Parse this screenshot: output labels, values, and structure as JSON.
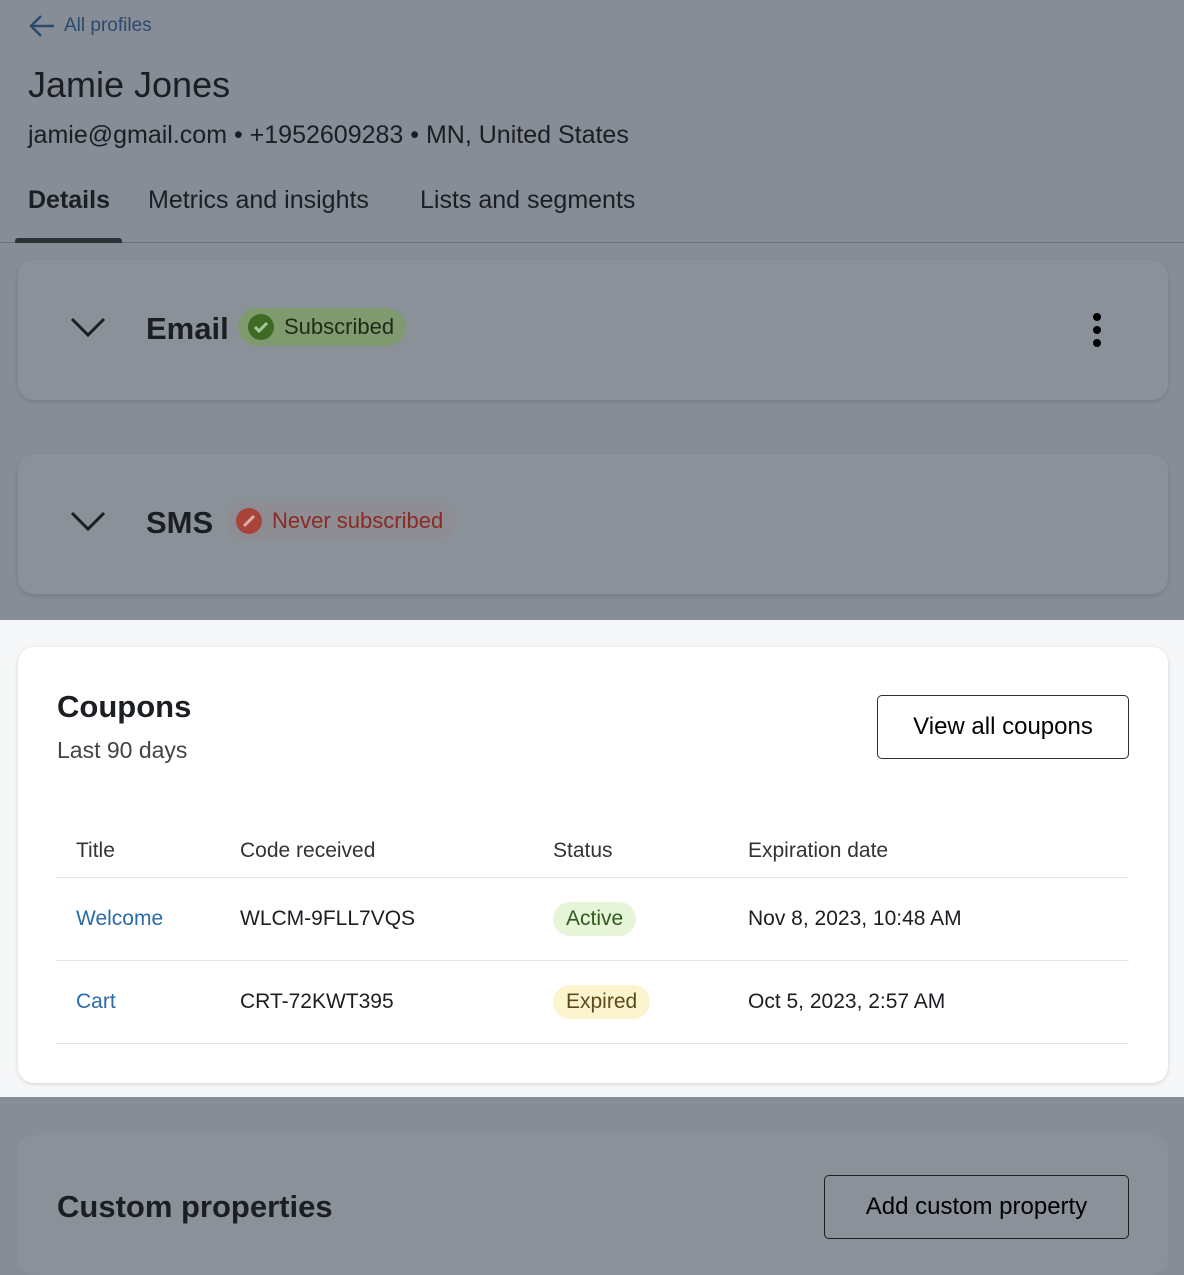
{
  "header": {
    "back_label": "All profiles",
    "name": "Jamie Jones",
    "meta": "jamie@gmail.com • +1952609283 • MN, United States"
  },
  "tabs": [
    {
      "label": "Details",
      "active": true
    },
    {
      "label": "Metrics and insights"
    },
    {
      "label": "Lists and segments"
    }
  ],
  "channels": [
    {
      "title": "Email",
      "status": "Subscribed",
      "status_color": "#4d7a2a"
    },
    {
      "title": "SMS",
      "status": "Never subscribed",
      "status_color": "#a8443a"
    }
  ],
  "coupons": {
    "title": "Coupons",
    "subtitle": "Last 90 days",
    "button": "View all coupons",
    "columns": [
      "Title",
      "Code received",
      "Status",
      "Expiration date"
    ],
    "rows": [
      {
        "title": "Welcome",
        "code": "WLCM-9FLL7VQS",
        "status": "Active",
        "expires": "Nov 8, 2023, 10:48 AM"
      },
      {
        "title": "Cart",
        "code": "CRT-72KWT395",
        "status": "Expired",
        "expires": "Oct 5, 2023, 2:57 AM"
      }
    ]
  },
  "custom": {
    "title": "Custom properties",
    "button": "Add custom property"
  }
}
